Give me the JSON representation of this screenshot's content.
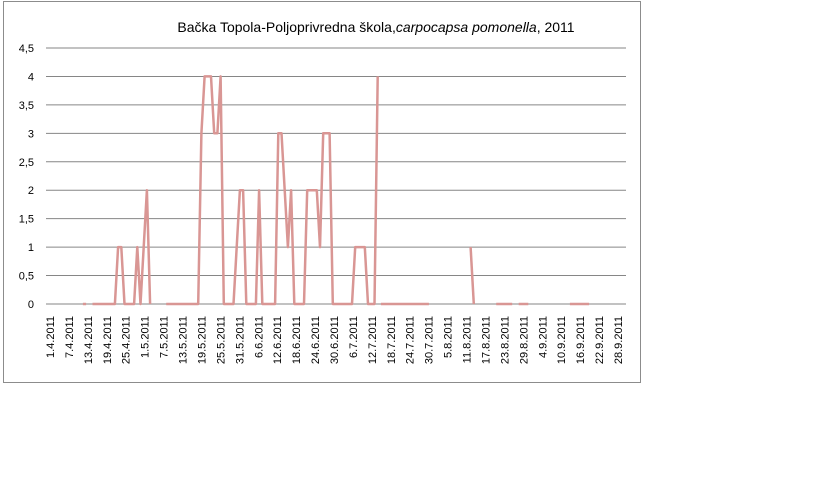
{
  "chart_data": {
    "type": "line",
    "title": {
      "prefix": "Bačka Topola-Poljoprivredna škola,",
      "italic": "carpocapsa pomonella",
      "suffix": ", 2011"
    },
    "xlabel": "",
    "ylabel": "",
    "y_ticks": [
      "0",
      "0,5",
      "1",
      "1,5",
      "2",
      "2,5",
      "3",
      "3,5",
      "4",
      "4,5"
    ],
    "ylim": [
      0,
      4.5
    ],
    "x_start": "2011-04-01",
    "x_end": "2011-09-28",
    "x_tick_labels": [
      "1.4.2011",
      "7.4.2011",
      "13.4.2011",
      "19.4.2011",
      "25.4.2011",
      "1.5.2011",
      "7.5.2011",
      "13.5.2011",
      "19.5.2011",
      "25.5.2011",
      "31.5.2011",
      "6.6.2011",
      "12.6.2011",
      "18.6.2011",
      "24.6.2011",
      "30.6.2011",
      "6.7.2011",
      "12.7.2011",
      "18.7.2011",
      "24.7.2011",
      "30.7.2011",
      "5.8.2011",
      "11.8.2011",
      "17.8.2011",
      "23.8.2011",
      "29.8.2011",
      "4.9.2011",
      "10.9.2011",
      "16.9.2011",
      "22.9.2011",
      "28.9.2011"
    ],
    "grid": true,
    "legend": "none",
    "line_color": "#d99694",
    "series": [
      {
        "x": [
          "2011-04-12",
          "2011-04-13"
        ],
        "values": [
          0,
          0
        ]
      },
      {
        "x": [
          "2011-04-15",
          "2011-04-16",
          "2011-04-17",
          "2011-04-18",
          "2011-04-19",
          "2011-04-20",
          "2011-04-21",
          "2011-04-22",
          "2011-04-23",
          "2011-04-24",
          "2011-04-25",
          "2011-04-26",
          "2011-04-27",
          "2011-04-28",
          "2011-04-29",
          "2011-04-30",
          "2011-05-01",
          "2011-05-02",
          "2011-05-03"
        ],
        "values": [
          0,
          0,
          0,
          0,
          0,
          0,
          0,
          0,
          1,
          1,
          0,
          0,
          0,
          0,
          1,
          0,
          1,
          2,
          0
        ]
      },
      {
        "x": [
          "2011-05-08",
          "2011-05-09",
          "2011-05-10",
          "2011-05-11",
          "2011-05-12",
          "2011-05-13",
          "2011-05-14",
          "2011-05-15",
          "2011-05-16",
          "2011-05-17",
          "2011-05-18",
          "2011-05-19",
          "2011-05-20",
          "2011-05-21",
          "2011-05-22",
          "2011-05-23",
          "2011-05-24",
          "2011-05-25",
          "2011-05-26",
          "2011-05-27",
          "2011-05-28",
          "2011-05-29",
          "2011-05-30",
          "2011-05-31",
          "2011-06-01",
          "2011-06-02",
          "2011-06-03",
          "2011-06-04",
          "2011-06-05",
          "2011-06-06",
          "2011-06-07",
          "2011-06-08",
          "2011-06-09",
          "2011-06-10",
          "2011-06-11",
          "2011-06-12",
          "2011-06-13",
          "2011-06-14",
          "2011-06-15",
          "2011-06-16",
          "2011-06-17",
          "2011-06-18",
          "2011-06-19",
          "2011-06-20",
          "2011-06-21",
          "2011-06-22",
          "2011-06-23",
          "2011-06-24",
          "2011-06-25",
          "2011-06-26",
          "2011-06-27",
          "2011-06-28",
          "2011-06-29",
          "2011-06-30",
          "2011-07-01",
          "2011-07-02",
          "2011-07-03",
          "2011-07-04",
          "2011-07-05",
          "2011-07-06",
          "2011-07-07",
          "2011-07-08",
          "2011-07-09",
          "2011-07-10",
          "2011-07-11",
          "2011-07-12",
          "2011-07-13"
        ],
        "values": [
          0,
          0,
          0,
          0,
          0,
          0,
          0,
          0,
          0,
          0,
          0,
          3,
          4,
          4,
          4,
          3,
          3,
          4,
          0,
          0,
          0,
          0,
          1,
          2,
          2,
          0,
          0,
          0,
          0,
          2,
          0,
          0,
          0,
          0,
          0,
          3,
          3,
          2,
          1,
          2,
          0,
          0,
          0,
          0,
          2,
          2,
          2,
          2,
          1,
          3,
          3,
          3,
          0,
          0,
          0,
          0,
          0,
          0,
          0,
          1,
          1,
          1,
          1,
          0,
          0,
          0,
          4
        ]
      },
      {
        "x": [
          "2011-07-14",
          "2011-07-15",
          "2011-07-16",
          "2011-07-17",
          "2011-07-18",
          "2011-07-19",
          "2011-07-20",
          "2011-07-21",
          "2011-07-22",
          "2011-07-23",
          "2011-07-24",
          "2011-07-25",
          "2011-07-26",
          "2011-07-27",
          "2011-07-28",
          "2011-07-29"
        ],
        "values": [
          0,
          0,
          0,
          0,
          0,
          0,
          0,
          0,
          0,
          0,
          0,
          0,
          0,
          0,
          0,
          0
        ]
      },
      {
        "x": [
          "2011-08-11",
          "2011-08-12"
        ],
        "values": [
          1,
          0
        ]
      },
      {
        "x": [
          "2011-08-19",
          "2011-08-20",
          "2011-08-21",
          "2011-08-22",
          "2011-08-23",
          "2011-08-24"
        ],
        "values": [
          0,
          0,
          0,
          0,
          0,
          0
        ]
      },
      {
        "x": [
          "2011-08-26",
          "2011-08-27",
          "2011-08-28",
          "2011-08-29"
        ],
        "values": [
          0,
          0,
          0,
          0
        ]
      },
      {
        "x": [
          "2011-09-11",
          "2011-09-12",
          "2011-09-13",
          "2011-09-14",
          "2011-09-15",
          "2011-09-16",
          "2011-09-17"
        ],
        "values": [
          0,
          0,
          0,
          0,
          0,
          0,
          0
        ]
      }
    ]
  }
}
